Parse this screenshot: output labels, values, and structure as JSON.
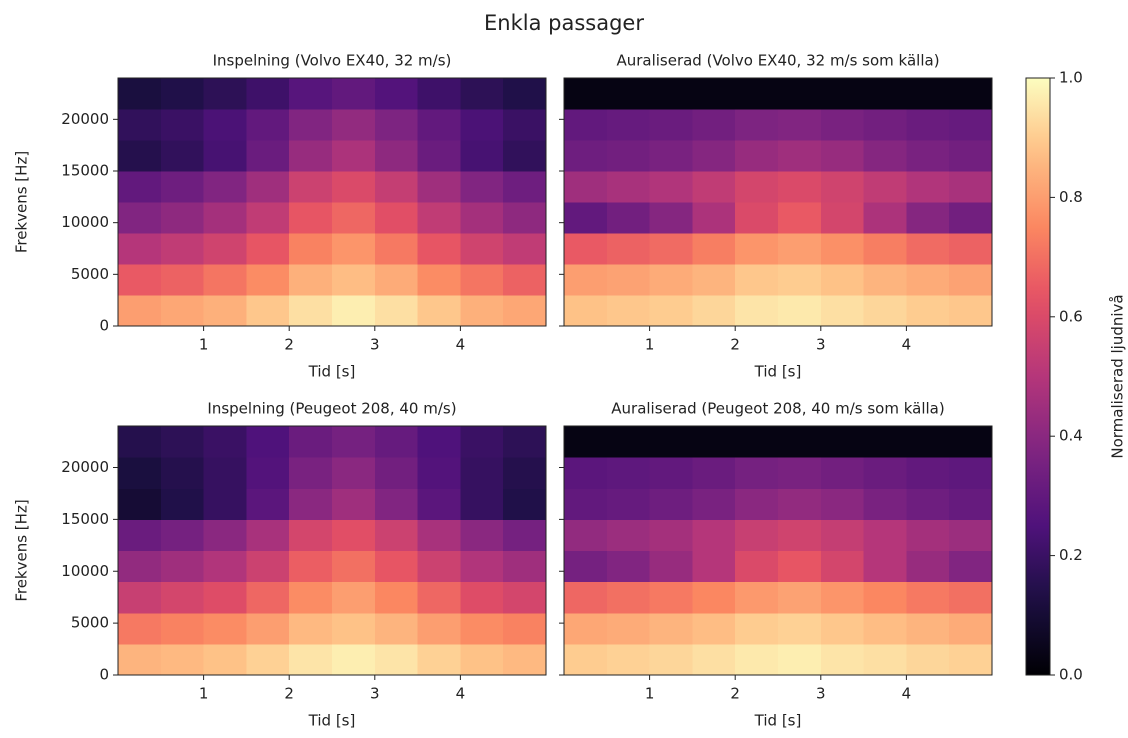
{
  "title": "Enkla passager",
  "colorbar": {
    "label": "Normaliserad ljudnivå",
    "colormap": "magma",
    "zlim": [
      0,
      1
    ],
    "ticks": [
      {
        "value": 0,
        "label": "0.0"
      },
      {
        "value": 0.2,
        "label": "0.2"
      },
      {
        "value": 0.4,
        "label": "0.4"
      },
      {
        "value": 0.6,
        "label": "0.6"
      },
      {
        "value": 0.8,
        "label": "0.8"
      },
      {
        "value": 1,
        "label": "1.0"
      }
    ]
  },
  "chart_data": [
    {
      "type": "heatmap",
      "title": "Inspelning (Volvo EX40, 32 m/s)",
      "xlabel": "Tid [s]",
      "ylabel": "Frekvens [Hz]",
      "xlim": [
        0,
        5
      ],
      "ylim": [
        0,
        24000
      ],
      "xticks": [
        1,
        2,
        3,
        4
      ],
      "yticks": [
        0,
        5000,
        10000,
        15000,
        20000
      ],
      "show_yticklabels": true,
      "z": [
        [
          0.8,
          0.82,
          0.84,
          0.89,
          0.94,
          0.97,
          0.94,
          0.89,
          0.84,
          0.82
        ],
        [
          0.65,
          0.67,
          0.71,
          0.76,
          0.84,
          0.87,
          0.83,
          0.76,
          0.71,
          0.67
        ],
        [
          0.5,
          0.53,
          0.57,
          0.64,
          0.74,
          0.78,
          0.72,
          0.64,
          0.57,
          0.53
        ],
        [
          0.38,
          0.41,
          0.46,
          0.53,
          0.64,
          0.68,
          0.62,
          0.53,
          0.46,
          0.41
        ],
        [
          0.3,
          0.33,
          0.38,
          0.45,
          0.56,
          0.6,
          0.54,
          0.45,
          0.38,
          0.33
        ],
        [
          0.15,
          0.18,
          0.23,
          0.32,
          0.43,
          0.48,
          0.41,
          0.32,
          0.23,
          0.18
        ],
        [
          0.18,
          0.2,
          0.24,
          0.3,
          0.38,
          0.42,
          0.37,
          0.3,
          0.24,
          0.2
        ],
        [
          0.12,
          0.14,
          0.17,
          0.21,
          0.27,
          0.3,
          0.26,
          0.21,
          0.17,
          0.14
        ]
      ]
    },
    {
      "type": "heatmap",
      "title": "Auraliserad (Volvo EX40, 32 m/s som källa)",
      "xlabel": "Tid [s]",
      "xlim": [
        0,
        5
      ],
      "ylim": [
        0,
        24000
      ],
      "xticks": [
        1,
        2,
        3,
        4
      ],
      "yticks": [
        0,
        5000,
        10000,
        15000,
        20000
      ],
      "show_yticklabels": false,
      "z": [
        [
          0.88,
          0.89,
          0.9,
          0.92,
          0.95,
          0.96,
          0.94,
          0.92,
          0.9,
          0.89
        ],
        [
          0.8,
          0.81,
          0.83,
          0.85,
          0.89,
          0.9,
          0.88,
          0.85,
          0.83,
          0.81
        ],
        [
          0.65,
          0.67,
          0.69,
          0.73,
          0.78,
          0.8,
          0.77,
          0.73,
          0.69,
          0.67
        ],
        [
          0.3,
          0.34,
          0.39,
          0.48,
          0.6,
          0.65,
          0.58,
          0.48,
          0.39,
          0.34
        ],
        [
          0.45,
          0.47,
          0.49,
          0.53,
          0.58,
          0.6,
          0.57,
          0.53,
          0.49,
          0.47
        ],
        [
          0.33,
          0.34,
          0.36,
          0.39,
          0.43,
          0.45,
          0.43,
          0.39,
          0.36,
          0.34
        ],
        [
          0.3,
          0.31,
          0.32,
          0.34,
          0.37,
          0.38,
          0.36,
          0.34,
          0.32,
          0.31
        ],
        [
          0.03,
          0.03,
          0.03,
          0.03,
          0.03,
          0.03,
          0.03,
          0.03,
          0.03,
          0.03
        ]
      ]
    },
    {
      "type": "heatmap",
      "title": "Inspelning (Peugeot 208, 40 m/s)",
      "xlabel": "Tid [s]",
      "ylabel": "Frekvens [Hz]",
      "xlim": [
        0,
        5
      ],
      "ylim": [
        0,
        24000
      ],
      "xticks": [
        1,
        2,
        3,
        4
      ],
      "yticks": [
        0,
        5000,
        10000,
        15000,
        20000
      ],
      "show_yticklabels": true,
      "z": [
        [
          0.85,
          0.86,
          0.88,
          0.91,
          0.95,
          0.97,
          0.95,
          0.91,
          0.88,
          0.86
        ],
        [
          0.72,
          0.74,
          0.76,
          0.8,
          0.86,
          0.88,
          0.85,
          0.8,
          0.76,
          0.74
        ],
        [
          0.55,
          0.58,
          0.61,
          0.68,
          0.76,
          0.8,
          0.75,
          0.68,
          0.61,
          0.58
        ],
        [
          0.42,
          0.45,
          0.49,
          0.56,
          0.66,
          0.7,
          0.64,
          0.56,
          0.49,
          0.45
        ],
        [
          0.32,
          0.35,
          0.4,
          0.47,
          0.58,
          0.62,
          0.56,
          0.47,
          0.4,
          0.35
        ],
        [
          0.1,
          0.14,
          0.19,
          0.28,
          0.4,
          0.45,
          0.38,
          0.28,
          0.19,
          0.14
        ],
        [
          0.12,
          0.15,
          0.19,
          0.26,
          0.36,
          0.4,
          0.34,
          0.26,
          0.19,
          0.15
        ],
        [
          0.15,
          0.17,
          0.2,
          0.25,
          0.32,
          0.35,
          0.31,
          0.25,
          0.2,
          0.17
        ]
      ]
    },
    {
      "type": "heatmap",
      "title": "Auraliserad (Peugeot 208, 40 m/s som källa)",
      "xlabel": "Tid [s]",
      "xlim": [
        0,
        5
      ],
      "ylim": [
        0,
        24000
      ],
      "xticks": [
        1,
        2,
        3,
        4
      ],
      "yticks": [
        0,
        5000,
        10000,
        15000,
        20000
      ],
      "show_yticklabels": false,
      "z": [
        [
          0.9,
          0.91,
          0.92,
          0.94,
          0.96,
          0.97,
          0.95,
          0.94,
          0.92,
          0.91
        ],
        [
          0.82,
          0.83,
          0.85,
          0.87,
          0.9,
          0.91,
          0.89,
          0.87,
          0.85,
          0.83
        ],
        [
          0.68,
          0.7,
          0.72,
          0.75,
          0.79,
          0.81,
          0.78,
          0.75,
          0.72,
          0.7
        ],
        [
          0.35,
          0.38,
          0.43,
          0.5,
          0.6,
          0.64,
          0.58,
          0.5,
          0.43,
          0.38
        ],
        [
          0.42,
          0.44,
          0.46,
          0.5,
          0.55,
          0.57,
          0.54,
          0.5,
          0.46,
          0.44
        ],
        [
          0.3,
          0.31,
          0.33,
          0.36,
          0.4,
          0.42,
          0.4,
          0.36,
          0.33,
          0.31
        ],
        [
          0.28,
          0.29,
          0.3,
          0.32,
          0.35,
          0.36,
          0.34,
          0.32,
          0.3,
          0.29
        ],
        [
          0.03,
          0.03,
          0.03,
          0.03,
          0.03,
          0.03,
          0.03,
          0.03,
          0.03,
          0.03
        ]
      ]
    }
  ]
}
